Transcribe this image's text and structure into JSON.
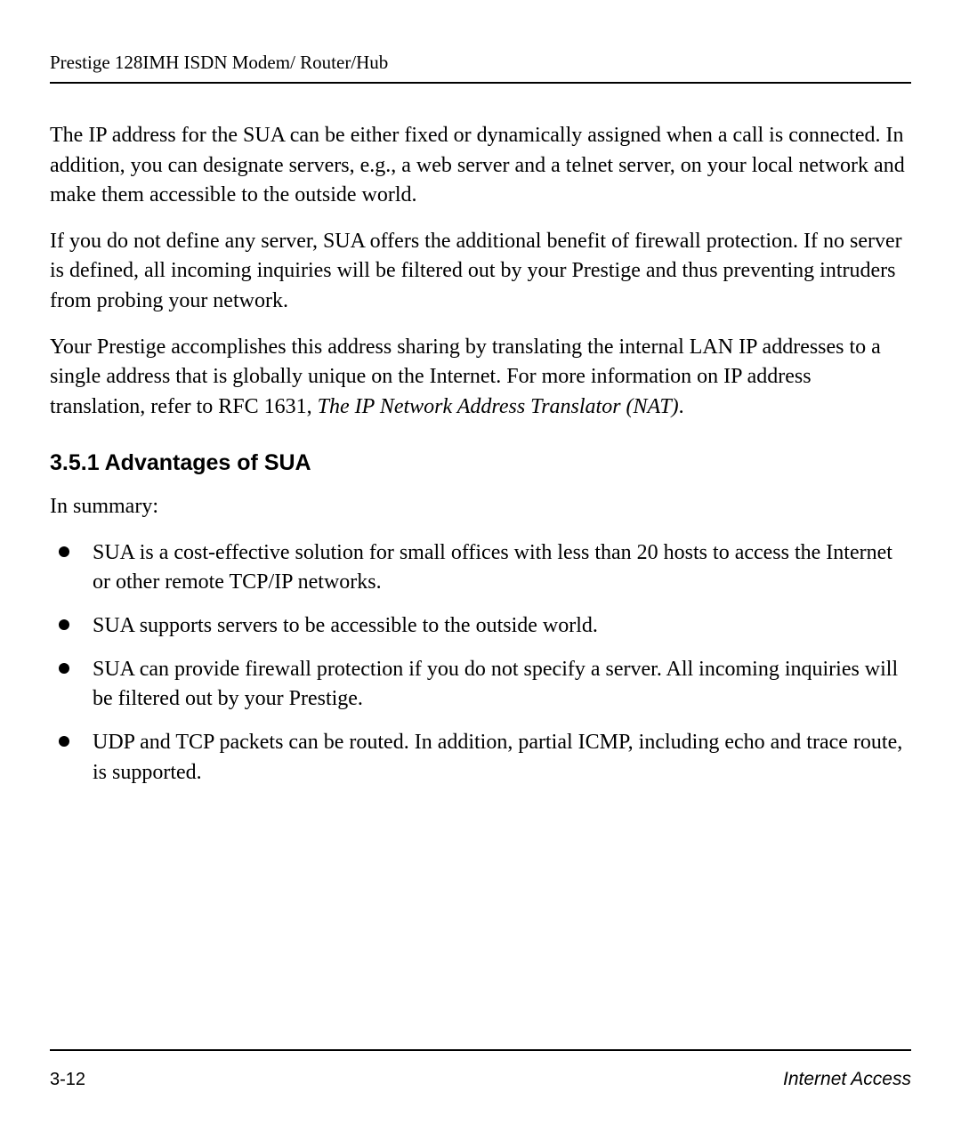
{
  "header": {
    "running_head": "Prestige 128IMH ISDN Modem/ Router/Hub"
  },
  "paragraphs": {
    "p1": "The IP address for the SUA can be either fixed or dynamically assigned when a call is connected. In addition, you can designate servers, e.g., a web server and a telnet server, on your local network and make them accessible to the outside world.",
    "p2": "If you do not define any server, SUA offers the additional benefit of firewall protection.  If no server is defined, all incoming inquiries will be filtered out by your Prestige and thus preventing intruders from probing your network.",
    "p3_pre": "Your Prestige accomplishes this address sharing by translating the internal LAN IP addresses to a single address that is globally unique on the Internet. For more information on IP address translation, refer to RFC 1631, ",
    "p3_italic": "The IP Network Address Translator (NAT)",
    "p3_post": "."
  },
  "subheading": "3.5.1   Advantages of SUA",
  "summary_line": "In summary:",
  "bullets": [
    "SUA is a cost-effective solution for small offices with less than 20 hosts to access the Internet or other remote TCP/IP networks.",
    "SUA supports servers to be accessible to the outside world.",
    "SUA can provide firewall protection if you do not specify a server.  All incoming inquiries will be filtered out by your Prestige.",
    "UDP and TCP packets can be routed. In addition, partial ICMP, including echo and trace route, is supported."
  ],
  "footer": {
    "page_number": "3-12",
    "section_title": "Internet Access"
  }
}
